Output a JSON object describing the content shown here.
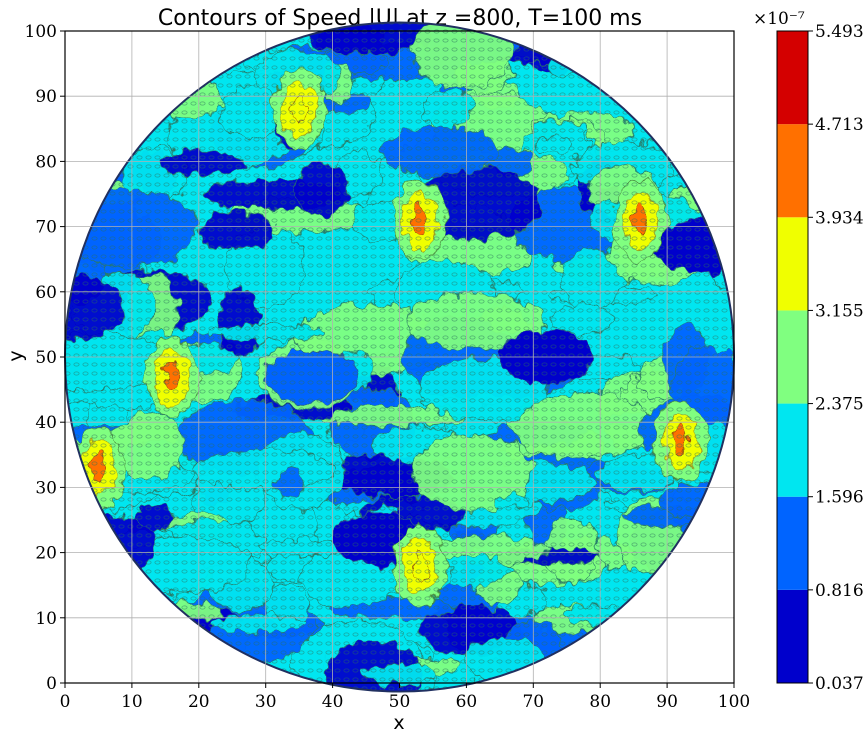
{
  "chart_data": {
    "type": "heatmap",
    "subtype": "filled-contour",
    "title": "Contours of Speed |U| at z =800, T=100 ms",
    "xlabel": "x",
    "ylabel": "y",
    "xlim": [
      0,
      100
    ],
    "ylim": [
      0,
      100
    ],
    "x_ticks": [
      0,
      10,
      20,
      30,
      40,
      50,
      60,
      70,
      80,
      90,
      100
    ],
    "y_ticks": [
      0,
      10,
      20,
      30,
      40,
      50,
      60,
      70,
      80,
      90,
      100
    ],
    "grid": true,
    "domain": {
      "shape": "circle",
      "center": [
        50,
        50
      ],
      "radius": 50
    },
    "colorbar": {
      "scale_label": "×10⁻⁷",
      "levels": [
        0.037,
        0.816,
        1.596,
        2.375,
        3.155,
        3.934,
        4.713,
        5.493
      ],
      "level_labels": [
        "0.037",
        "0.816",
        "1.596",
        "2.375",
        "3.155",
        "3.934",
        "4.713",
        "5.493"
      ],
      "colors": [
        "#0000cc",
        "#0064ff",
        "#00e6f0",
        "#80ff80",
        "#f0ff00",
        "#ff7000",
        "#d40000"
      ]
    },
    "hotspots": [
      {
        "x": 5,
        "y": 33,
        "level_index": 5
      },
      {
        "x": 16,
        "y": 47,
        "level_index": 5
      },
      {
        "x": 53,
        "y": 71,
        "level_index": 5
      },
      {
        "x": 86,
        "y": 71,
        "level_index": 5
      },
      {
        "x": 92,
        "y": 37,
        "level_index": 5
      },
      {
        "x": 53,
        "y": 18,
        "level_index": 4
      },
      {
        "x": 35,
        "y": 88,
        "level_index": 4
      }
    ],
    "lowzones": [
      {
        "x": 72,
        "y": 50,
        "level_index": 0
      },
      {
        "x": 95,
        "y": 67,
        "level_index": 0
      },
      {
        "x": 47,
        "y": 22,
        "level_index": 0
      },
      {
        "x": 37,
        "y": 47,
        "level_index": 1
      }
    ]
  }
}
